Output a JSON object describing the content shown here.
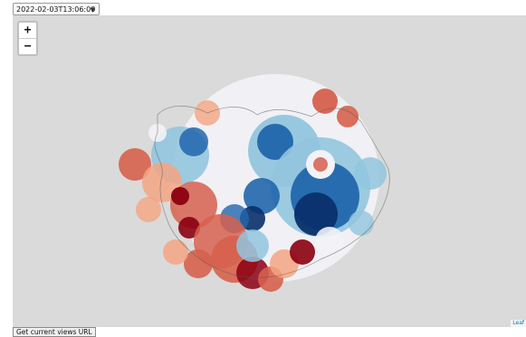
{
  "time_selector": {
    "selected": "2022-02-03T13:06:00"
  },
  "zoom": {
    "in_label": "+",
    "out_label": "−"
  },
  "attribution": "Leaf",
  "url_button": {
    "label": "Get current views URL"
  },
  "colors": {
    "map_background": "#dadada",
    "deep_blue": "#08306b",
    "blue": "#2166ac",
    "light_blue": "#92c5de",
    "near_white": "#f2f2f7",
    "light_red": "#f4a582",
    "red": "#d6604d",
    "deep_red": "#8b0010"
  }
}
